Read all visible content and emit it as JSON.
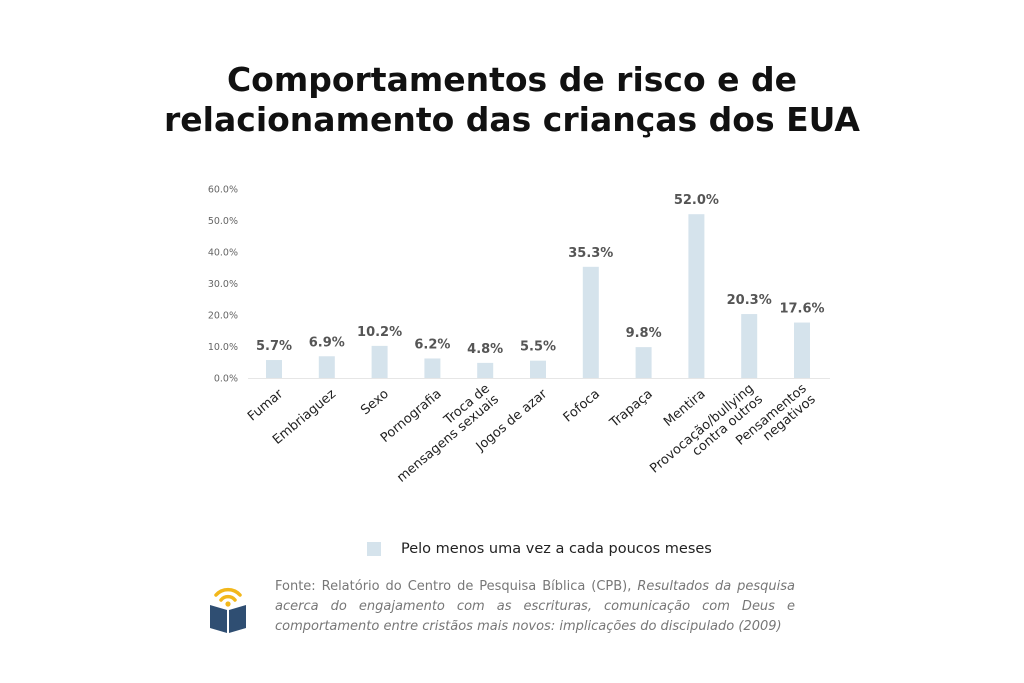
{
  "title": {
    "line1": "Comportamentos de risco e de",
    "line2": "relacionamento das crianças dos EUA"
  },
  "chart_data": {
    "type": "bar",
    "title": "Comportamentos de risco e de relacionamento das crianças dos EUA",
    "categories": [
      [
        "Fumar"
      ],
      [
        "Embriaguez"
      ],
      [
        "Sexo"
      ],
      [
        "Pornografia"
      ],
      [
        "Troca de",
        "mensagens sexuais"
      ],
      [
        "Jogos de azar"
      ],
      [
        "Fofoca"
      ],
      [
        "Trapaça"
      ],
      [
        "Mentira"
      ],
      [
        "Provocação/bullying",
        "contra outros"
      ],
      [
        "Pensamentos",
        "negativos"
      ]
    ],
    "series": [
      {
        "name": "Pelo menos uma vez a cada poucos meses",
        "values": [
          5.7,
          6.9,
          10.2,
          6.2,
          4.8,
          5.5,
          35.3,
          9.8,
          52.0,
          20.3,
          17.6
        ]
      }
    ],
    "data_labels": [
      "5.7%",
      "6.9%",
      "10.2%",
      "6.2%",
      "4.8%",
      "5.5%",
      "35.3%",
      "9.8%",
      "52.0%",
      "20.3%",
      "17.6%"
    ],
    "ylim": [
      0,
      60
    ],
    "yticks": [
      "0.0%",
      "10.0%",
      "20.0%",
      "30.0%",
      "40.0%",
      "50.0%",
      "60.0%"
    ],
    "grid": false,
    "legend_position": "bottom",
    "bar_color": "#d5e3ec"
  },
  "legend": {
    "label": "Pelo menos uma vez a cada poucos meses"
  },
  "source": {
    "prefix": "Fonte: Relatório do Centro de Pesquisa Bíblica (CPB), ",
    "italic": "Resultados da pesquisa acerca do engajamento com as escrituras, comunicação com Deus e comportamento entre cristãos mais novos: implicações do discipulado (2009)"
  },
  "logo": {
    "icon": "open-book-signal-icon",
    "color_top": "#f2b71b",
    "color_book": "#2f4e72"
  }
}
